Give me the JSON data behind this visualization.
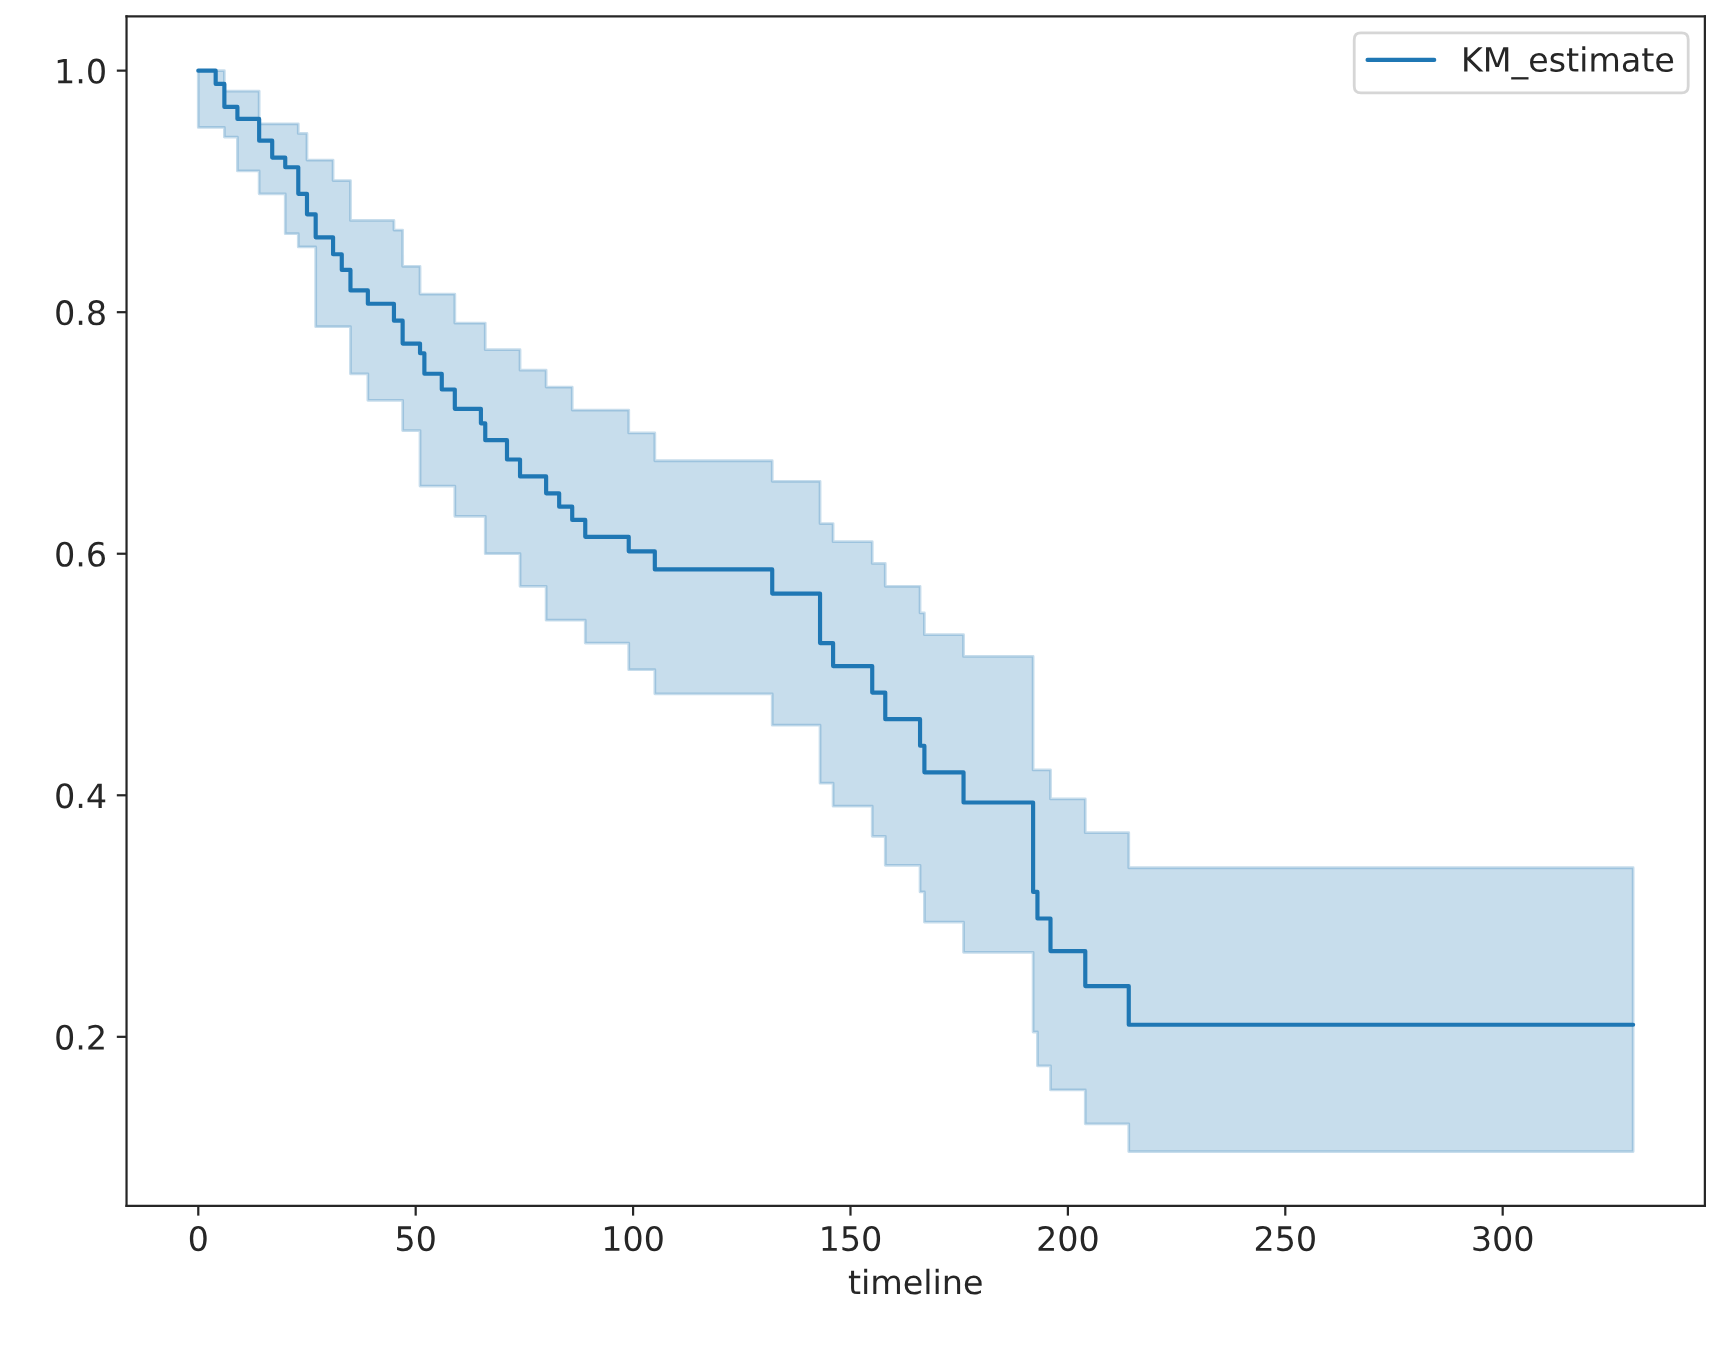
{
  "chart_data": {
    "type": "step",
    "xlabel": "timeline",
    "xlim": [
      -16.5,
      346.5
    ],
    "ylim": [
      0.06,
      1.045
    ],
    "xticks": [
      0,
      50,
      100,
      150,
      200,
      250,
      300
    ],
    "yticks": [
      {
        "value": 0.2,
        "label": "0.2"
      },
      {
        "value": 0.4,
        "label": "0.4"
      },
      {
        "value": 0.6,
        "label": "0.6"
      },
      {
        "value": 0.8,
        "label": "0.8"
      },
      {
        "value": 1.0,
        "label": "1.0"
      }
    ],
    "grid": false,
    "legend": "top right",
    "line_style": "solid",
    "marker": "none",
    "series": [
      {
        "name": "KM_estimate",
        "color": "#1f77b4",
        "x": [
          0,
          4,
          6,
          9,
          14,
          17,
          20,
          23,
          25,
          27,
          31,
          33,
          35,
          39,
          45,
          47,
          51,
          52,
          56,
          59,
          65,
          66,
          71,
          74,
          80,
          83,
          86,
          89,
          99,
          105,
          132,
          143,
          146,
          155,
          158,
          166,
          167,
          176,
          192,
          193,
          196,
          204,
          214,
          330
        ],
        "values": [
          1.0,
          0.989,
          0.97,
          0.96,
          0.942,
          0.928,
          0.92,
          0.898,
          0.881,
          0.862,
          0.848,
          0.835,
          0.818,
          0.807,
          0.793,
          0.774,
          0.766,
          0.749,
          0.736,
          0.72,
          0.708,
          0.694,
          0.678,
          0.664,
          0.65,
          0.639,
          0.628,
          0.614,
          0.602,
          0.587,
          0.567,
          0.526,
          0.507,
          0.485,
          0.463,
          0.441,
          0.419,
          0.394,
          0.32,
          0.298,
          0.271,
          0.242,
          0.21,
          0.21
        ],
        "upper": [
          1.0,
          1.0,
          0.983,
          0.983,
          0.956,
          0.956,
          0.956,
          0.948,
          0.926,
          0.926,
          0.909,
          0.909,
          0.876,
          0.876,
          0.868,
          0.838,
          0.815,
          0.815,
          0.815,
          0.791,
          0.791,
          0.769,
          0.769,
          0.752,
          0.738,
          0.738,
          0.719,
          0.719,
          0.7,
          0.677,
          0.66,
          0.625,
          0.61,
          0.592,
          0.573,
          0.551,
          0.533,
          0.515,
          0.421,
          0.421,
          0.397,
          0.369,
          0.34,
          0.34
        ],
        "lower": [
          0.953,
          0.953,
          0.945,
          0.917,
          0.898,
          0.898,
          0.865,
          0.854,
          0.854,
          0.788,
          0.788,
          0.788,
          0.749,
          0.727,
          0.727,
          0.702,
          0.656,
          0.656,
          0.656,
          0.631,
          0.631,
          0.6,
          0.6,
          0.573,
          0.545,
          0.545,
          0.545,
          0.526,
          0.504,
          0.484,
          0.458,
          0.41,
          0.391,
          0.366,
          0.342,
          0.32,
          0.295,
          0.27,
          0.204,
          0.176,
          0.156,
          0.128,
          0.105,
          0.105
        ]
      }
    ]
  }
}
